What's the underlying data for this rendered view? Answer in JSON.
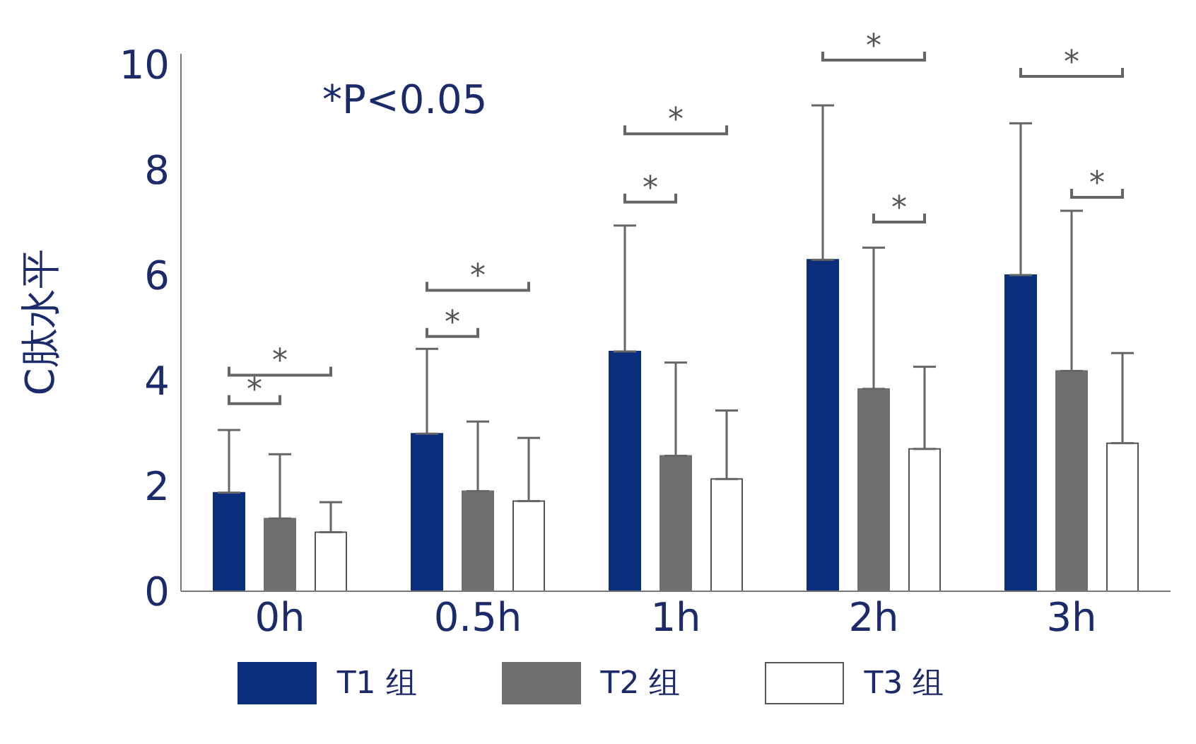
{
  "chart_data": {
    "type": "bar",
    "ylabel": "C肽水平",
    "categories": [
      "0h",
      "0.5h",
      "1h",
      "2h",
      "3h"
    ],
    "series": [
      {
        "name": "T1 组",
        "color": "#0b2f7d",
        "values": [
          1.87,
          2.99,
          4.55,
          6.29,
          6.0
        ],
        "errors": [
          [
            1.87,
            3.06
          ],
          [
            2.99,
            4.6
          ],
          [
            4.55,
            6.94
          ],
          [
            6.29,
            9.22
          ],
          [
            6.0,
            8.88
          ]
        ]
      },
      {
        "name": "T2 组",
        "color": "#707070",
        "values": [
          1.38,
          1.9,
          2.57,
          3.84,
          4.18
        ],
        "errors": [
          [
            1.38,
            2.6
          ],
          [
            1.9,
            3.22
          ],
          [
            2.57,
            4.34
          ],
          [
            3.84,
            6.52
          ],
          [
            4.18,
            7.22
          ]
        ]
      },
      {
        "name": "T3 组",
        "color": "#ffffff",
        "values": [
          1.12,
          1.71,
          2.13,
          2.7,
          2.81
        ],
        "errors": [
          [
            1.12,
            1.69
          ],
          [
            1.71,
            2.91
          ],
          [
            2.13,
            3.43
          ],
          [
            2.7,
            4.26
          ],
          [
            2.81,
            4.52
          ]
        ]
      }
    ],
    "ylim": [
      0,
      10.2
    ],
    "yticks": [
      0,
      2,
      4,
      6,
      8,
      10
    ],
    "grid": false,
    "legend": "bottom",
    "annotations": [
      "*P<0.05",
      "*",
      "*",
      "*",
      "*",
      "*",
      "*",
      "*",
      "*",
      "*",
      "*"
    ]
  }
}
